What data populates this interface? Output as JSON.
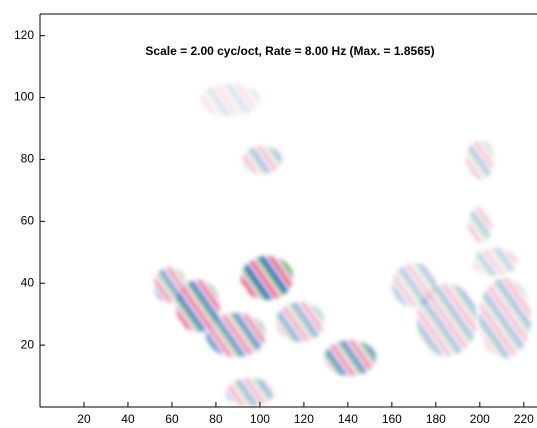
{
  "chart_data": {
    "type": "image",
    "title": "Scale =  2.00 cyc/oct, Rate =  8.00 Hz (Max. = 1.8565)",
    "xlim": [
      0,
      226
    ],
    "ylim": [
      0,
      127
    ],
    "xticks": [
      20,
      40,
      60,
      80,
      100,
      120,
      140,
      160,
      180,
      200,
      220
    ],
    "yticks": [
      20,
      40,
      60,
      80,
      100,
      120
    ]
  }
}
